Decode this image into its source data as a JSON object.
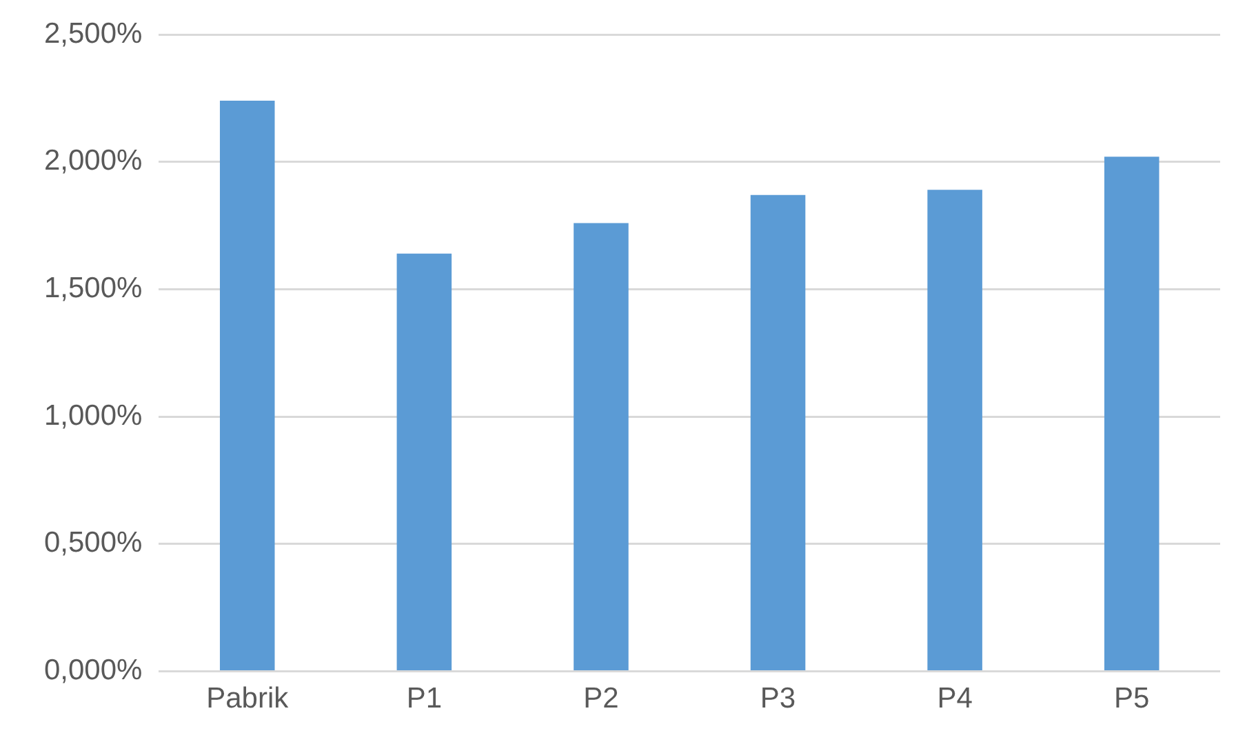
{
  "chart_data": {
    "type": "bar",
    "categories": [
      "Pabrik",
      "P1",
      "P2",
      "P3",
      "P4",
      "P5"
    ],
    "values": [
      2.24,
      1.64,
      1.76,
      1.87,
      1.89,
      2.02
    ],
    "color": "#5b9bd5",
    "ylim": [
      0,
      2.5
    ],
    "yticks": [
      {
        "value": 0,
        "label": "0,000%"
      },
      {
        "value": 0.5,
        "label": "0,500%"
      },
      {
        "value": 1,
        "label": "1,000%"
      },
      {
        "value": 1.5,
        "label": "1,500%"
      },
      {
        "value": 2,
        "label": "2,000%"
      },
      {
        "value": 2.5,
        "label": "2,500%"
      }
    ],
    "grid": "y"
  }
}
